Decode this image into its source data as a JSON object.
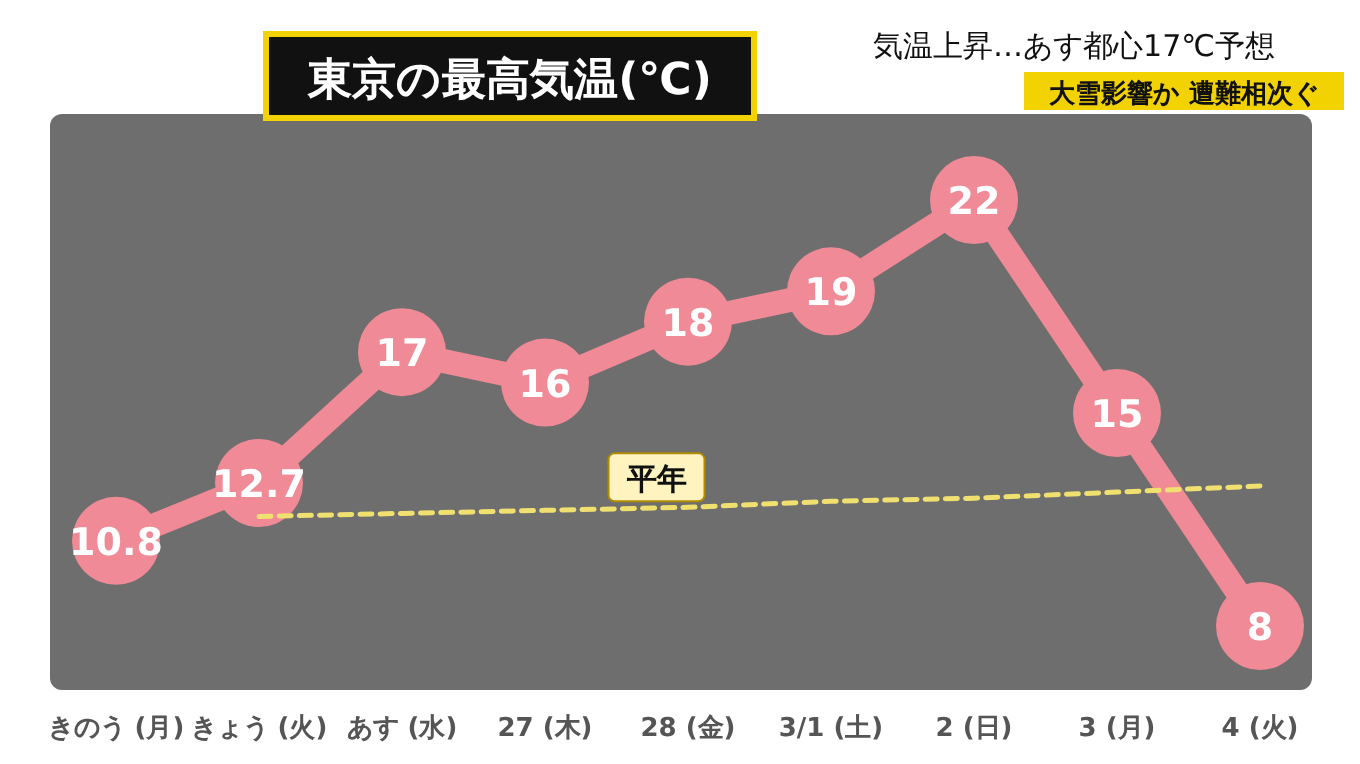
{
  "chart_data": {
    "type": "line",
    "title": "東京の最高気温(℃)",
    "annotations": [
      "気温上昇…あす都心17℃予想",
      "大雪影響か 遭難相次ぐ"
    ],
    "categories": [
      "きのう (月)",
      "きょう (火)",
      "あす (水)",
      "27 (木)",
      "28 (金)",
      "3/1 (土)",
      "2 (日)",
      "3 (月)",
      "4 (火)"
    ],
    "series": [
      {
        "values": [
          10.8,
          12.7,
          17,
          16,
          18,
          19,
          22,
          15,
          8
        ],
        "value_labels": [
          "10.8",
          "12.7",
          "17",
          "16",
          "18",
          "19",
          "22",
          "15",
          "8"
        ],
        "color": "#f08a96",
        "marker": "circle",
        "line_style": "solid"
      },
      {
        "name": "平年",
        "values": [
          null,
          11.6,
          11.7,
          11.8,
          11.9,
          12.1,
          12.2,
          12.4,
          12.6
        ],
        "color": "#f0e070",
        "marker": "none",
        "line_style": "dashed"
      }
    ],
    "legend": false,
    "grid": false
  }
}
